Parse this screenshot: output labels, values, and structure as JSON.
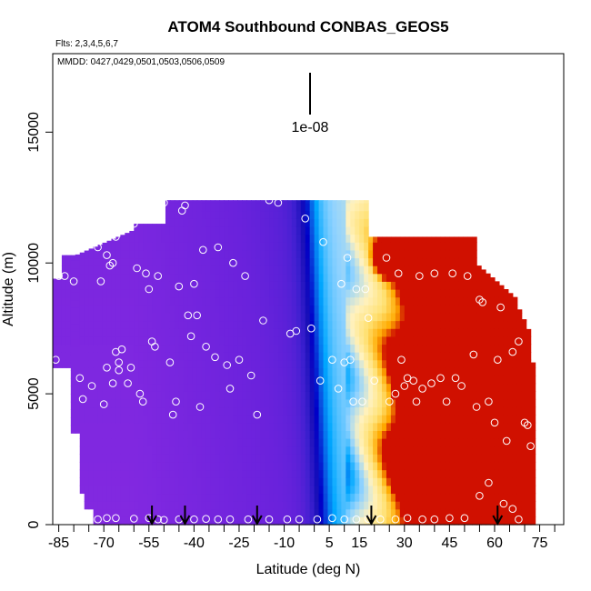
{
  "chart_data": {
    "type": "heatmap",
    "title": "ATOM4 Southbound CONBAS_GEOS5",
    "subtitle_flights": "Flts: 2,3,4,5,6,7",
    "subtitle_dates": "MMDD: 0427,0429,0501,0503,0506,0509",
    "xlabel": "Latitude (deg N)",
    "ylabel": "Altitude (m)",
    "scale_label": "1e-08",
    "xlim": [
      -87,
      83
    ],
    "ylim": [
      0,
      18000
    ],
    "x_ticks": [
      -85,
      -70,
      -55,
      -40,
      -25,
      -10,
      5,
      15,
      30,
      45,
      60,
      75
    ],
    "x_tick_labels": [
      "-85",
      "-70",
      "-55",
      "-40",
      "-25",
      "-10",
      "5",
      "15",
      "30",
      "45",
      "60",
      "75"
    ],
    "y_ticks": [
      0,
      5000,
      10000,
      15000
    ],
    "y_tick_labels": [
      "0",
      "5000",
      "10000",
      "15000"
    ],
    "colors": {
      "low": "#8a2be2",
      "mid_low": "#1a10b8",
      "mid": "#00a8ff",
      "mid_high": "#fff2c0",
      "high": "#ffaa00",
      "peak": "#d01000"
    },
    "profile_arrows_lat": [
      -54,
      -43,
      -19,
      19,
      61
    ],
    "sample_points": [
      [
        -86,
        6300
      ],
      [
        -85,
        9500
      ],
      [
        -83,
        9500
      ],
      [
        -80,
        9300
      ],
      [
        -78,
        5600
      ],
      [
        -77,
        4800
      ],
      [
        -74,
        5300
      ],
      [
        -70,
        4600
      ],
      [
        -72,
        10600
      ],
      [
        -71,
        9300
      ],
      [
        -69,
        10300
      ],
      [
        -69,
        6000
      ],
      [
        -68,
        9900
      ],
      [
        -67,
        10000
      ],
      [
        -66,
        11000
      ],
      [
        -67,
        5400
      ],
      [
        -66,
        6600
      ],
      [
        -65,
        5900
      ],
      [
        -65,
        6200
      ],
      [
        -64,
        6700
      ],
      [
        -62,
        5400
      ],
      [
        -61,
        6000
      ],
      [
        -60,
        11500
      ],
      [
        -59,
        9800
      ],
      [
        -58,
        5000
      ],
      [
        -57,
        4700
      ],
      [
        -56,
        9600
      ],
      [
        -55,
        9000
      ],
      [
        -54,
        7000
      ],
      [
        -53,
        6800
      ],
      [
        -52,
        9500
      ],
      [
        -50,
        12300
      ],
      [
        -48,
        6200
      ],
      [
        -47,
        4200
      ],
      [
        -46,
        4700
      ],
      [
        -45,
        9100
      ],
      [
        -44,
        12000
      ],
      [
        -43,
        12200
      ],
      [
        -42,
        8000
      ],
      [
        -41,
        7200
      ],
      [
        -40,
        9200
      ],
      [
        -39,
        8000
      ],
      [
        -38,
        4500
      ],
      [
        -37,
        10500
      ],
      [
        -36,
        6800
      ],
      [
        -33,
        6400
      ],
      [
        -32,
        10600
      ],
      [
        -29,
        6100
      ],
      [
        -28,
        5200
      ],
      [
        -27,
        10000
      ],
      [
        -25,
        6300
      ],
      [
        -23,
        9500
      ],
      [
        -21,
        5700
      ],
      [
        -19,
        4200
      ],
      [
        -17,
        7800
      ],
      [
        -15,
        12400
      ],
      [
        -12,
        12300
      ],
      [
        -8,
        7300
      ],
      [
        -6,
        7400
      ],
      [
        -3,
        11700
      ],
      [
        -1,
        7500
      ],
      [
        2,
        5500
      ],
      [
        3,
        10800
      ],
      [
        6,
        6300
      ],
      [
        8,
        5200
      ],
      [
        9,
        9200
      ],
      [
        10,
        6200
      ],
      [
        11,
        10200
      ],
      [
        12,
        6300
      ],
      [
        13,
        4700
      ],
      [
        14,
        9000
      ],
      [
        16,
        4700
      ],
      [
        17,
        9000
      ],
      [
        18,
        7900
      ],
      [
        20,
        5500
      ],
      [
        21,
        11700
      ],
      [
        24,
        10200
      ],
      [
        25,
        4700
      ],
      [
        27,
        5000
      ],
      [
        28,
        9600
      ],
      [
        29,
        6300
      ],
      [
        30,
        5300
      ],
      [
        31,
        5600
      ],
      [
        33,
        5500
      ],
      [
        34,
        4700
      ],
      [
        35,
        9500
      ],
      [
        36,
        5200
      ],
      [
        39,
        5400
      ],
      [
        40,
        9600
      ],
      [
        42,
        5600
      ],
      [
        44,
        4700
      ],
      [
        46,
        9600
      ],
      [
        47,
        5600
      ],
      [
        49,
        5300
      ],
      [
        51,
        9500
      ],
      [
        53,
        6500
      ],
      [
        54,
        4500
      ],
      [
        55,
        8600
      ],
      [
        56,
        8500
      ],
      [
        58,
        4700
      ],
      [
        59,
        9800
      ],
      [
        60,
        3900
      ],
      [
        61,
        6300
      ],
      [
        62,
        8300
      ],
      [
        64,
        3200
      ],
      [
        65,
        9600
      ],
      [
        66,
        6600
      ],
      [
        68,
        7000
      ],
      [
        70,
        3900
      ],
      [
        71,
        3800
      ],
      [
        72,
        3000
      ],
      [
        -78,
        200
      ],
      [
        -72,
        200
      ],
      [
        -69,
        250
      ],
      [
        -66,
        250
      ],
      [
        -60,
        230
      ],
      [
        -55,
        250
      ],
      [
        -52,
        200
      ],
      [
        -50,
        180
      ],
      [
        -45,
        200
      ],
      [
        -40,
        200
      ],
      [
        -36,
        220
      ],
      [
        -32,
        200
      ],
      [
        -28,
        200
      ],
      [
        -22,
        200
      ],
      [
        -15,
        200
      ],
      [
        -9,
        200
      ],
      [
        -5,
        200
      ],
      [
        1,
        200
      ],
      [
        6,
        250
      ],
      [
        10,
        200
      ],
      [
        14,
        200
      ],
      [
        18,
        220
      ],
      [
        22,
        200
      ],
      [
        27,
        200
      ],
      [
        31,
        250
      ],
      [
        36,
        200
      ],
      [
        40,
        200
      ],
      [
        45,
        250
      ],
      [
        50,
        250
      ],
      [
        55,
        1100
      ],
      [
        58,
        1600
      ],
      [
        63,
        800
      ],
      [
        66,
        600
      ],
      [
        68,
        200
      ]
    ]
  }
}
